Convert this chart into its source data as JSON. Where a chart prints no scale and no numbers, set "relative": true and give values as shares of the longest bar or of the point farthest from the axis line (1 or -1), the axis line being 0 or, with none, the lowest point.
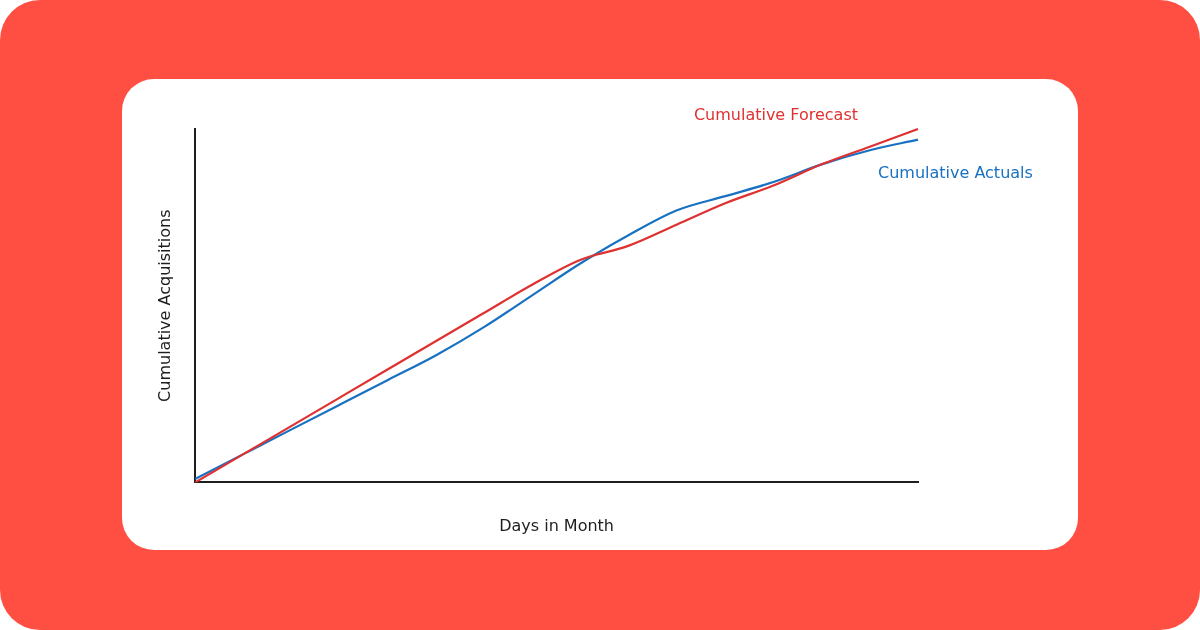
{
  "chart_data": {
    "type": "line",
    "relative": true,
    "xlabel": "Days in Month",
    "ylabel": "Cumulative Acquisitions",
    "categories": [
      null,
      null,
      null,
      null,
      null,
      null,
      null,
      null,
      null,
      null,
      null,
      null,
      null,
      null,
      null,
      null
    ],
    "series": [
      {
        "name": "Cumulative Forecast",
        "color": "#e03131",
        "values": [
          0,
          0.08,
          0.16,
          0.24,
          0.32,
          0.4,
          0.48,
          0.56,
          0.63,
          0.67,
          0.73,
          0.79,
          0.84,
          0.9,
          0.95,
          1
        ]
      },
      {
        "name": "Cumulative Actuals",
        "color": "#1971c2",
        "values": [
          0.01,
          0.08,
          0.15,
          0.22,
          0.29,
          0.36,
          0.44,
          0.53,
          0.62,
          0.7,
          0.77,
          0.81,
          0.85,
          0.9,
          0.94,
          0.97
        ]
      }
    ],
    "grid": false,
    "legend": false,
    "marker": "none",
    "line_style": "solid"
  }
}
